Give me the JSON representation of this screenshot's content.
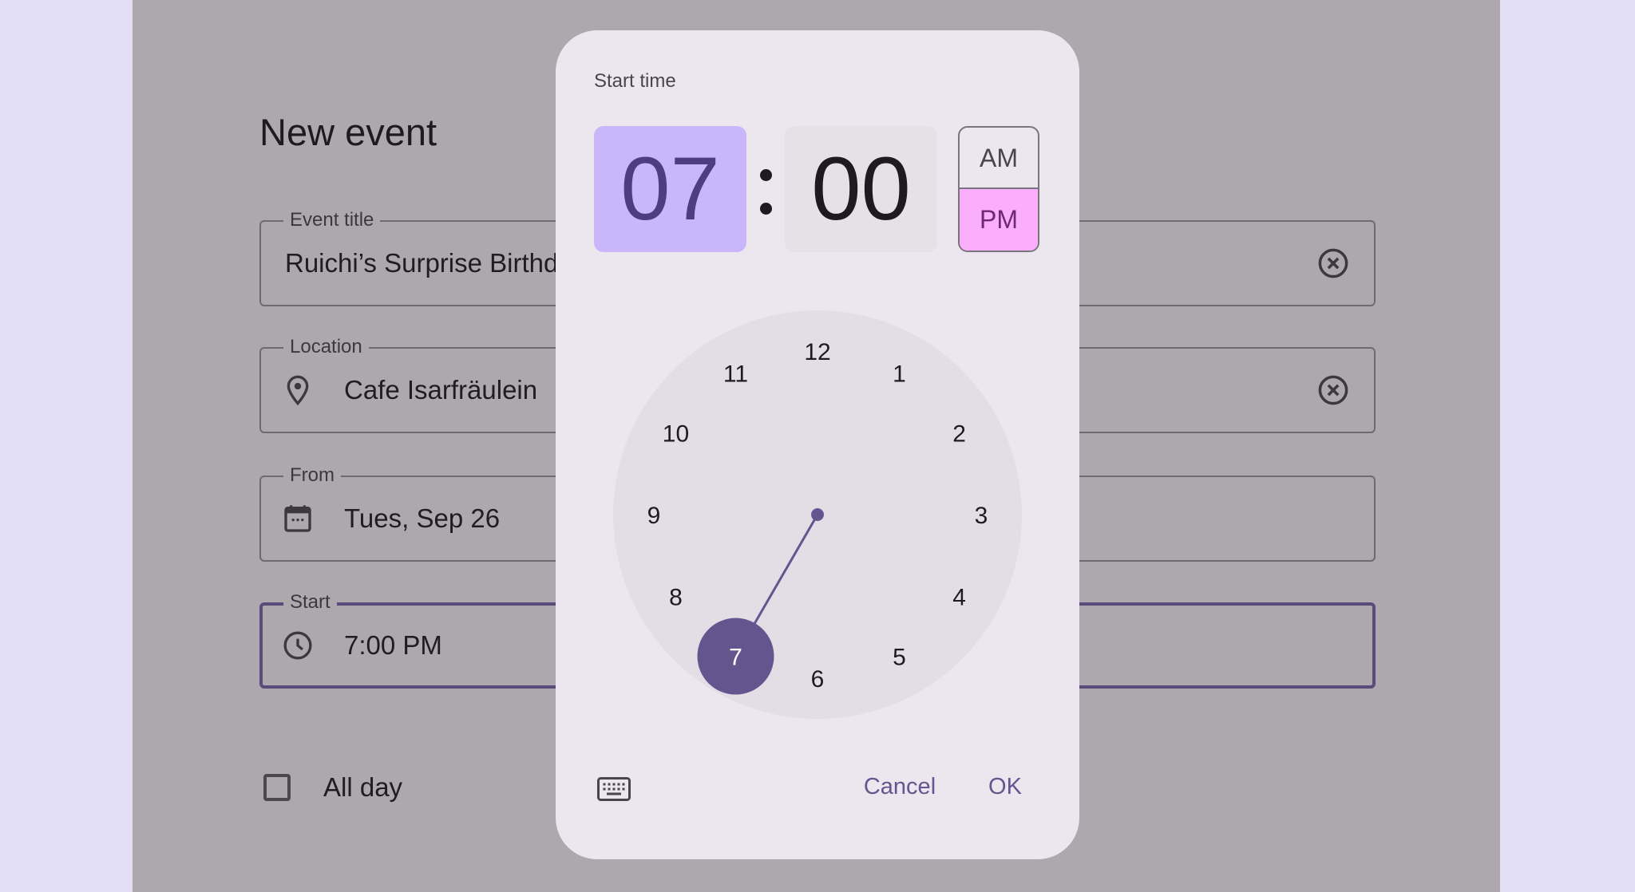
{
  "form": {
    "title": "New event",
    "event_title": {
      "label": "Event title",
      "value": "Ruichi’s Surprise Birthday"
    },
    "location": {
      "label": "Location",
      "value": "Cafe Isarfräulein"
    },
    "from": {
      "label": "From",
      "value": "Tues, Sep 26"
    },
    "start": {
      "label": "Start",
      "value": "7:00 PM"
    },
    "all_day": {
      "label": "All day",
      "checked": false
    }
  },
  "dialog": {
    "title": "Start time",
    "hour": "07",
    "minute": "00",
    "am": "AM",
    "pm": "PM",
    "period_selected": "PM",
    "clock_numbers": [
      "12",
      "1",
      "2",
      "3",
      "4",
      "5",
      "6",
      "7",
      "8",
      "9",
      "10",
      "11"
    ],
    "selected_hour": "7",
    "cancel": "Cancel",
    "ok": "OK",
    "colors": {
      "accent": "#65558f",
      "hour_bg": "#c9b6fb",
      "pm_bg": "#fbaefc"
    }
  }
}
